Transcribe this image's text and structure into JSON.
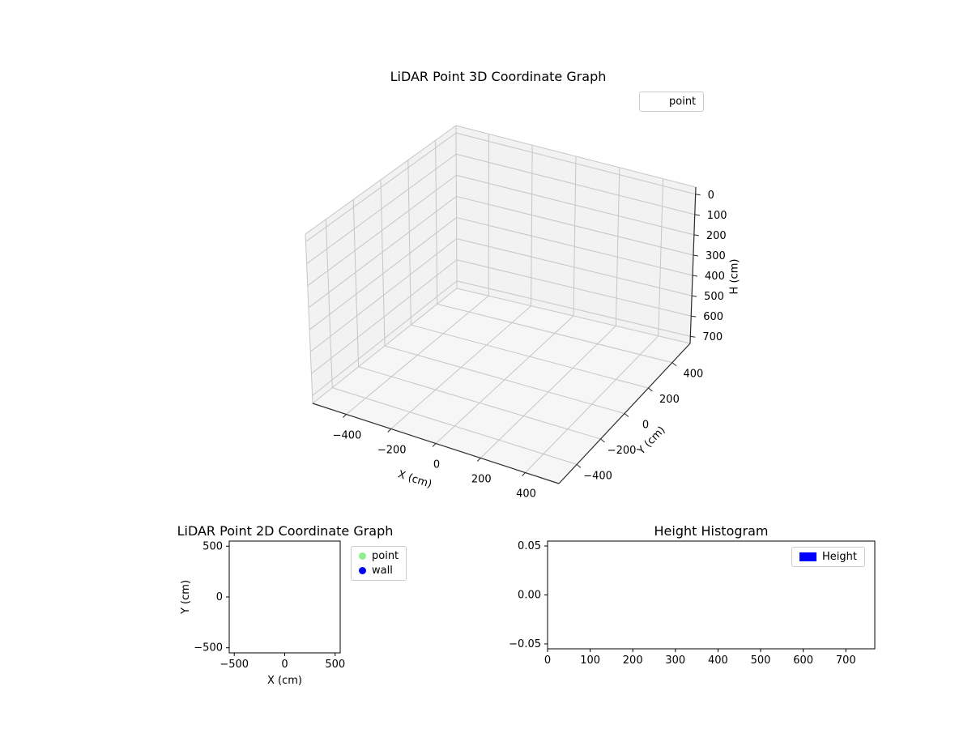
{
  "chart_data": [
    {
      "id": "plot3d",
      "type": "scatter3d",
      "title": "LiDAR Point 3D Coordinate Graph",
      "grid": true,
      "legend": {
        "position": "upper right outside axes",
        "entries": [
          {
            "label": "point",
            "marker": "none",
            "color": null
          }
        ]
      },
      "xaxis": {
        "label": "X (cm)",
        "lim": [
          -550,
          550
        ],
        "tick_values": [
          -400,
          -200,
          0,
          200,
          400
        ],
        "tick_labels": [
          "−400",
          "−200",
          "0",
          "200",
          "400"
        ]
      },
      "yaxis": {
        "label": "Y (cm)",
        "lim": [
          -550,
          550
        ],
        "tick_values": [
          -400,
          -200,
          0,
          200,
          400
        ],
        "tick_labels": [
          "−400",
          "−200",
          "0",
          "200",
          "400"
        ]
      },
      "zaxis": {
        "label": "H (cm)",
        "lim": [
          -35,
          735
        ],
        "inverted": true,
        "tick_values": [
          0,
          100,
          200,
          300,
          400,
          500,
          600,
          700
        ],
        "tick_labels": [
          "0",
          "100",
          "200",
          "300",
          "400",
          "500",
          "600",
          "700"
        ]
      },
      "series": [
        {
          "name": "point",
          "points": []
        }
      ]
    },
    {
      "id": "plot2d",
      "type": "scatter",
      "title": "LiDAR Point 2D Coordinate Graph",
      "grid": false,
      "legend": {
        "position": "outside upper right",
        "entries": [
          {
            "label": "point",
            "marker": "circle",
            "color": "#90ee90"
          },
          {
            "label": "wall",
            "marker": "circle",
            "color": "#0000ff"
          }
        ]
      },
      "xaxis": {
        "label": "X (cm)",
        "lim": [
          -550,
          550
        ],
        "tick_values": [
          -500,
          0,
          500
        ],
        "tick_labels": [
          "−500",
          "0",
          "500"
        ]
      },
      "yaxis": {
        "label": "Y (cm)",
        "lim": [
          -550,
          550
        ],
        "tick_values": [
          -500,
          0,
          500
        ],
        "tick_labels": [
          "−500",
          "0",
          "500"
        ]
      },
      "series": [
        {
          "name": "point",
          "color": "#90ee90",
          "points": []
        },
        {
          "name": "wall",
          "color": "#0000ff",
          "points": []
        }
      ]
    },
    {
      "id": "hist",
      "type": "bar",
      "title": "Height Histogram",
      "grid": false,
      "legend": {
        "position": "upper right",
        "entries": [
          {
            "label": "Height",
            "marker": "rect",
            "color": "#0000ff"
          }
        ]
      },
      "xaxis": {
        "label": "",
        "lim": [
          0,
          768
        ],
        "tick_values": [
          0,
          100,
          200,
          300,
          400,
          500,
          600,
          700
        ],
        "tick_labels": [
          "0",
          "100",
          "200",
          "300",
          "400",
          "500",
          "600",
          "700"
        ]
      },
      "yaxis": {
        "label": "",
        "lim": [
          -0.055,
          0.055
        ],
        "tick_values": [
          -0.05,
          0,
          0.05
        ],
        "tick_labels": [
          "−0.05",
          "0.00",
          "0.05"
        ]
      },
      "series": [
        {
          "name": "Height",
          "color": "#0000ff",
          "values": []
        }
      ]
    }
  ]
}
